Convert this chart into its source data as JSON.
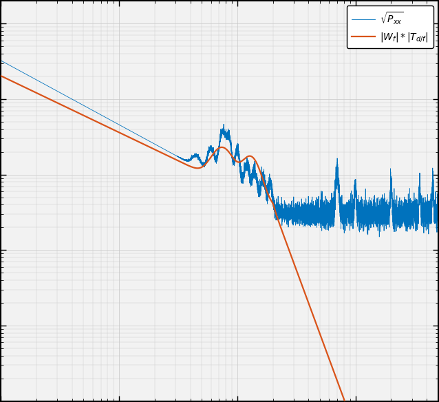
{
  "blue_color": "#0072bd",
  "orange_color": "#d95319",
  "background_color": "#f0f0f0",
  "plot_bg": "#f2f2f2",
  "grid_color": "#c8c8c8",
  "border_color": "#000000",
  "legend_labels": [
    "$\\sqrt{P_{xx}}$",
    "$|W_f| * |T_{d/f}|$"
  ],
  "figsize": [
    6.38,
    5.84
  ],
  "dpi": 100,
  "xlim": [
    0.1,
    500
  ],
  "ylim": [
    1e-11,
    2e-06
  ]
}
